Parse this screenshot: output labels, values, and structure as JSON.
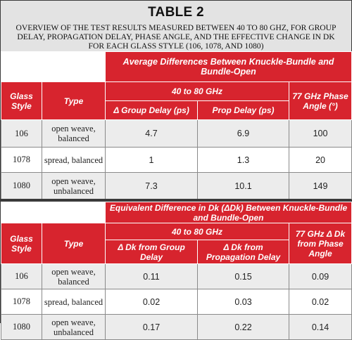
{
  "title": "TABLE 2",
  "subtitle": "Overview of the test results measured between 40 to 80 GHz, for group delay, propagation delay, phase angle, and the effective change in Dk for each glass style (106, 1078, and 1080)",
  "colors": {
    "header_red": "#d7242e",
    "band_gray": "#ececec",
    "title_bg": "#e3e3e3"
  },
  "table1": {
    "banner": "Average Differences Between Knuckle-Bundle and Bundle-Open",
    "range_header": "40 to 80 GHz",
    "glass_header": "Glass Style",
    "type_header": "Type",
    "col_group": "Δ Group Delay (ps)",
    "col_prop": "Prop Delay (ps)",
    "col_phase": "77 GHz Phase Angle (°)",
    "rows": [
      {
        "glass": "106",
        "type": "open weave, balanced",
        "group": "4.7",
        "prop": "6.9",
        "phase": "100"
      },
      {
        "glass": "1078",
        "type": "spread, balanced",
        "group": "1",
        "prop": "1.3",
        "phase": "20"
      },
      {
        "glass": "1080",
        "type": "open weave, unbalanced",
        "group": "7.3",
        "prop": "10.1",
        "phase": "149"
      }
    ]
  },
  "table2": {
    "banner": "Equivalent Difference in Dk (ΔDk) Between Knuckle-Bundle and Bundle-Open",
    "range_header": "40 to 80 GHz",
    "glass_header": "Glass Style",
    "type_header": "Type",
    "col_group": "Δ Dk from Group Delay",
    "col_prop": "Δ Dk from Propagation Delay",
    "col_phase": "77 GHz Δ Dk from Phase Angle",
    "rows": [
      {
        "glass": "106",
        "type": "open weave, balanced",
        "group": "0.11",
        "prop": "0.15",
        "phase": "0.09"
      },
      {
        "glass": "1078",
        "type": "spread, balanced",
        "group": "0.02",
        "prop": "0.03",
        "phase": "0.02"
      },
      {
        "glass": "1080",
        "type": "open weave, unbalanced",
        "group": "0.17",
        "prop": "0.22",
        "phase": "0.14"
      }
    ]
  }
}
